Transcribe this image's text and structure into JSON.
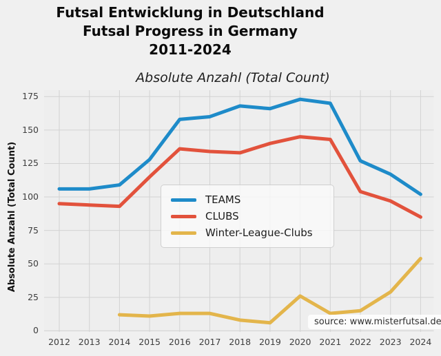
{
  "title": {
    "line1": "Futsal Entwicklung in Deutschland",
    "line2": "Futsal Progress in Germany",
    "line3": "2011-2024"
  },
  "subtitle": "Absolute Anzahl (Total Count)",
  "source": "source: www.misterfutsal.de",
  "colors": {
    "figure_background": "#f0f0f0",
    "plot_background": "#eeeeee",
    "grid": "#d2d2d2",
    "teams": "#1e8bc9",
    "clubs": "#e2523c",
    "winter": "#e3b54b"
  },
  "chart_data": {
    "type": "line",
    "title": "Absolute Anzahl (Total Count)",
    "xlabel": "",
    "ylabel": "Absolute Anzahl (Total Count)",
    "x": [
      2012,
      2013,
      2014,
      2015,
      2016,
      2017,
      2018,
      2019,
      2020,
      2021,
      2022,
      2023,
      2024
    ],
    "ylim": [
      0,
      180
    ],
    "yticks": [
      0,
      25,
      50,
      75,
      100,
      125,
      150,
      175
    ],
    "grid": true,
    "legend_position": "center-left",
    "series": [
      {
        "name": "TEAMS",
        "color": "#1e8bc9",
        "values": [
          106,
          106,
          109,
          128,
          158,
          160,
          168,
          166,
          173,
          170,
          127,
          117,
          102
        ]
      },
      {
        "name": "CLUBS",
        "color": "#e2523c",
        "values": [
          95,
          94,
          93,
          115,
          136,
          134,
          133,
          140,
          145,
          143,
          104,
          97,
          85
        ]
      },
      {
        "name": "Winter-League-Clubs",
        "color": "#e3b54b",
        "values": [
          null,
          null,
          12,
          11,
          13,
          13,
          8,
          6,
          26,
          13,
          15,
          29,
          54
        ]
      }
    ]
  }
}
